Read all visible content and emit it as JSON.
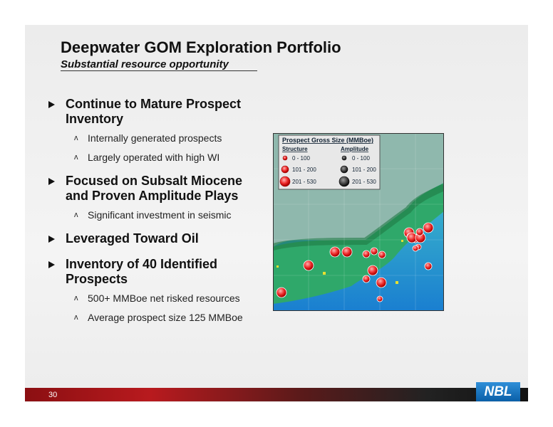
{
  "header": {
    "title": "Deepwater GOM Exploration Portfolio",
    "subtitle": "Substantial resource opportunity"
  },
  "bullets": [
    {
      "lines": [
        "Continue to Mature Prospect",
        "Inventory"
      ],
      "subs": [
        "Internally generated prospects",
        "Largely operated with high WI"
      ]
    },
    {
      "lines": [
        "Focused on Subsalt Miocene",
        "and Proven Amplitude Plays"
      ],
      "subs": [
        "Significant investment in seismic"
      ]
    },
    {
      "lines": [
        "Leveraged Toward Oil"
      ],
      "subs": []
    },
    {
      "lines": [
        "Inventory of 40 Identified",
        "Prospects"
      ],
      "subs": [
        "500+ MMBoe net risked resources",
        "Average prospect size 125 MMBoe"
      ]
    }
  ],
  "map_legend": {
    "title": "Prospect Gross Size (MMBoe)",
    "structure": "Structure",
    "amplitude": "Amplitude",
    "structure_ranges": [
      "0 - 100",
      "101 - 200",
      "201 - 530"
    ],
    "amplitude_ranges": [
      "0 - 100",
      "101 - 200",
      "201 - 530"
    ]
  },
  "footer": {
    "page": "30",
    "logo": "NBL"
  }
}
